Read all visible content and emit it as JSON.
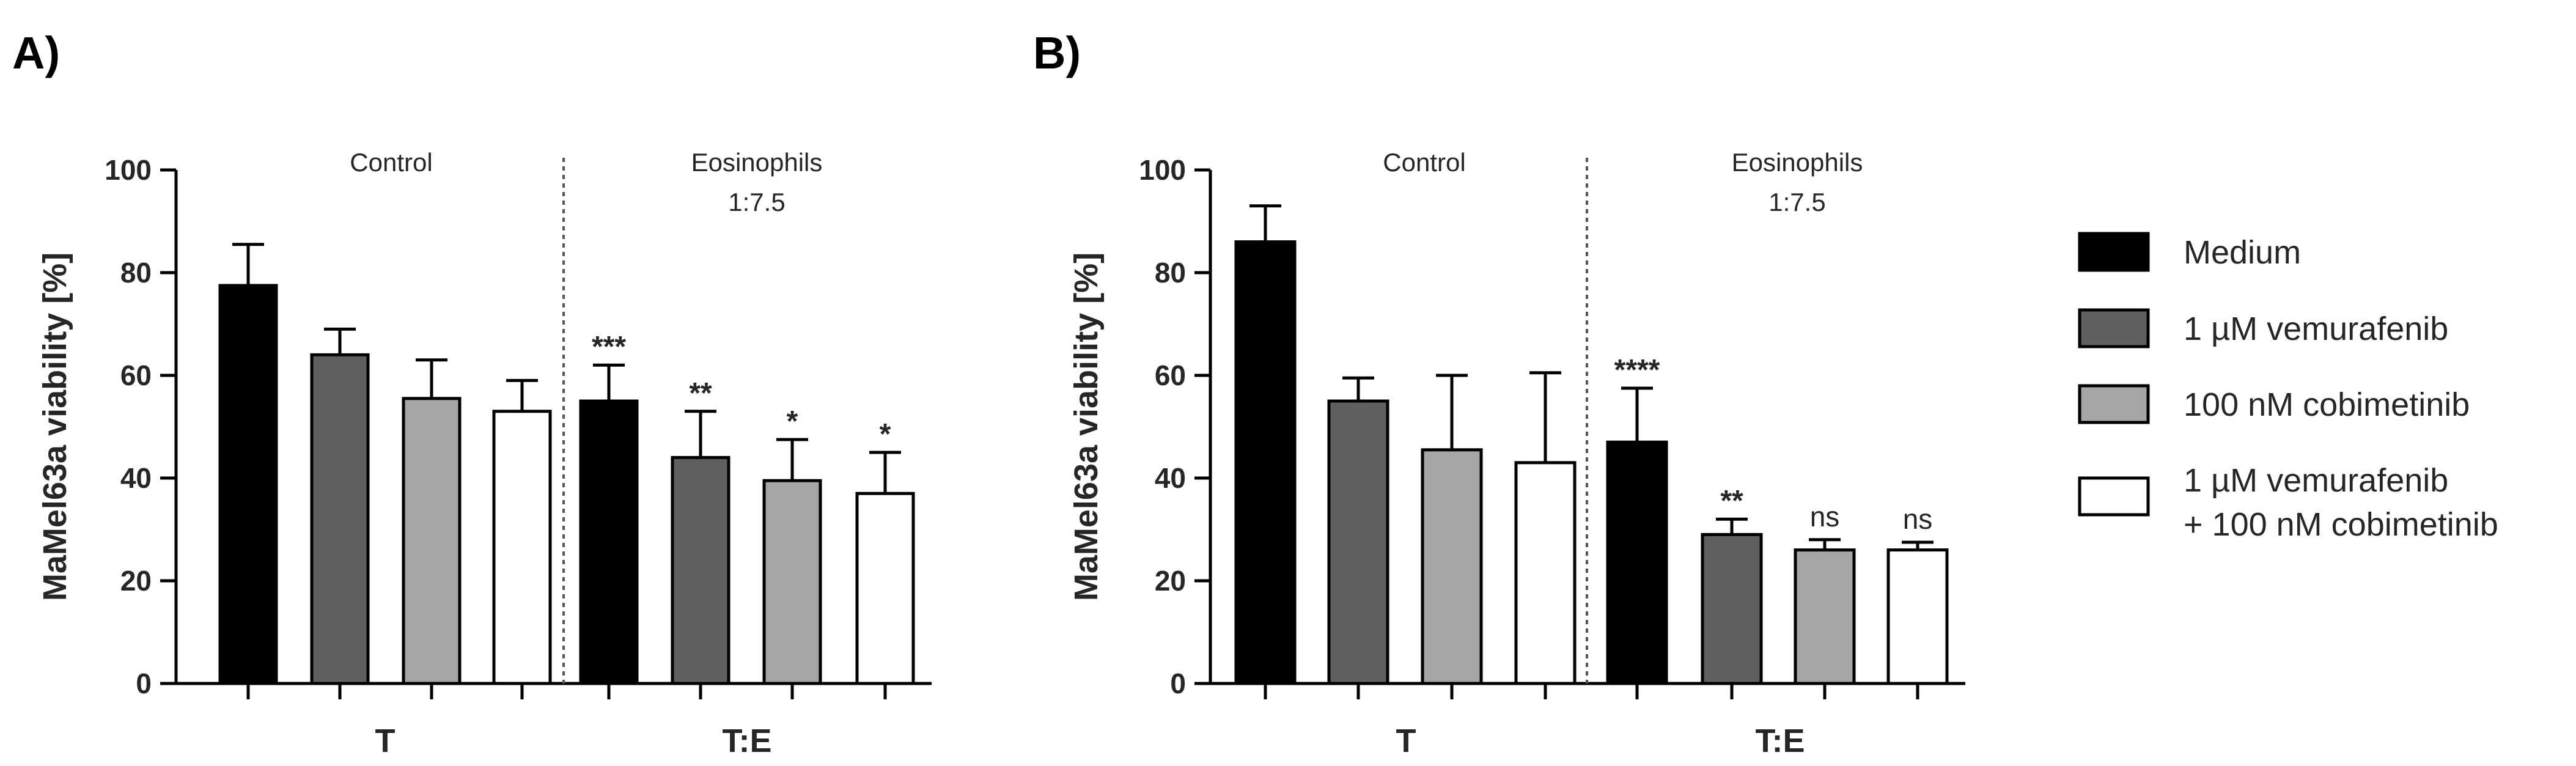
{
  "colors": {
    "medium": "#000000",
    "vemurafenib": "#5f5f5f",
    "cobimetinib": "#a5a5a5",
    "combination": "#ffffff",
    "stroke": "#000000",
    "text": "#262626",
    "divider": "#555555"
  },
  "legend": {
    "items": [
      {
        "key": "medium",
        "label": "Medium"
      },
      {
        "key": "vemurafenib",
        "label": "1 µM vemurafenib"
      },
      {
        "key": "cobimetinib",
        "label": "100 nM cobimetinib"
      },
      {
        "key": "combination",
        "label": "1 µM vemurafenib",
        "label2": "+ 100 nM cobimetinib"
      }
    ]
  },
  "chart_data": [
    {
      "panel": "A)",
      "type": "bar",
      "ylabel": "MaMel63a viability [%]",
      "ylim": [
        0,
        100
      ],
      "yticks": [
        0,
        20,
        40,
        60,
        80,
        100
      ],
      "categories": [
        "T",
        "T:E"
      ],
      "groups": [
        {
          "label": "Control",
          "sublabel": "",
          "category": "T"
        },
        {
          "label": "Eosinophils",
          "sublabel": "1:7.5",
          "category": "T:E"
        }
      ],
      "series": [
        {
          "name": "Medium",
          "key": "medium",
          "values": [
            77.5,
            55
          ],
          "errors": [
            8,
            7
          ],
          "significance": [
            "",
            "***"
          ]
        },
        {
          "name": "1 µM vemurafenib",
          "key": "vemurafenib",
          "values": [
            64,
            44
          ],
          "errors": [
            5,
            9
          ],
          "significance": [
            "",
            "**"
          ]
        },
        {
          "name": "100 nM cobimetinib",
          "key": "cobimetinib",
          "values": [
            55.5,
            39.5
          ],
          "errors": [
            7.5,
            8
          ],
          "significance": [
            "",
            "*"
          ]
        },
        {
          "name": "1 µM vemurafenib + 100 nM cobimetinib",
          "key": "combination",
          "values": [
            53,
            37
          ],
          "errors": [
            6,
            8
          ],
          "significance": [
            "",
            "*"
          ]
        }
      ]
    },
    {
      "panel": "B)",
      "type": "bar",
      "ylabel": "MaMel63a viability [%]",
      "ylim": [
        0,
        100
      ],
      "yticks": [
        0,
        20,
        40,
        60,
        80,
        100
      ],
      "categories": [
        "T",
        "T:E"
      ],
      "groups": [
        {
          "label": "Control",
          "sublabel": "",
          "category": "T"
        },
        {
          "label": "Eosinophils",
          "sublabel": "1:7.5",
          "category": "T:E"
        }
      ],
      "series": [
        {
          "name": "Medium",
          "key": "medium",
          "values": [
            86,
            47
          ],
          "errors": [
            7,
            10.5
          ],
          "significance": [
            "",
            "****"
          ]
        },
        {
          "name": "1 µM vemurafenib",
          "key": "vemurafenib",
          "values": [
            55,
            29
          ],
          "errors": [
            4.5,
            3
          ],
          "significance": [
            "",
            "**"
          ]
        },
        {
          "name": "100 nM cobimetinib",
          "key": "cobimetinib",
          "values": [
            45.5,
            26
          ],
          "errors": [
            14.5,
            2
          ],
          "significance": [
            "",
            "ns"
          ]
        },
        {
          "name": "1 µM vemurafenib + 100 nM cobimetinib",
          "key": "combination",
          "values": [
            43,
            26
          ],
          "errors": [
            17.5,
            1.5
          ],
          "significance": [
            "",
            "ns"
          ]
        }
      ]
    }
  ]
}
